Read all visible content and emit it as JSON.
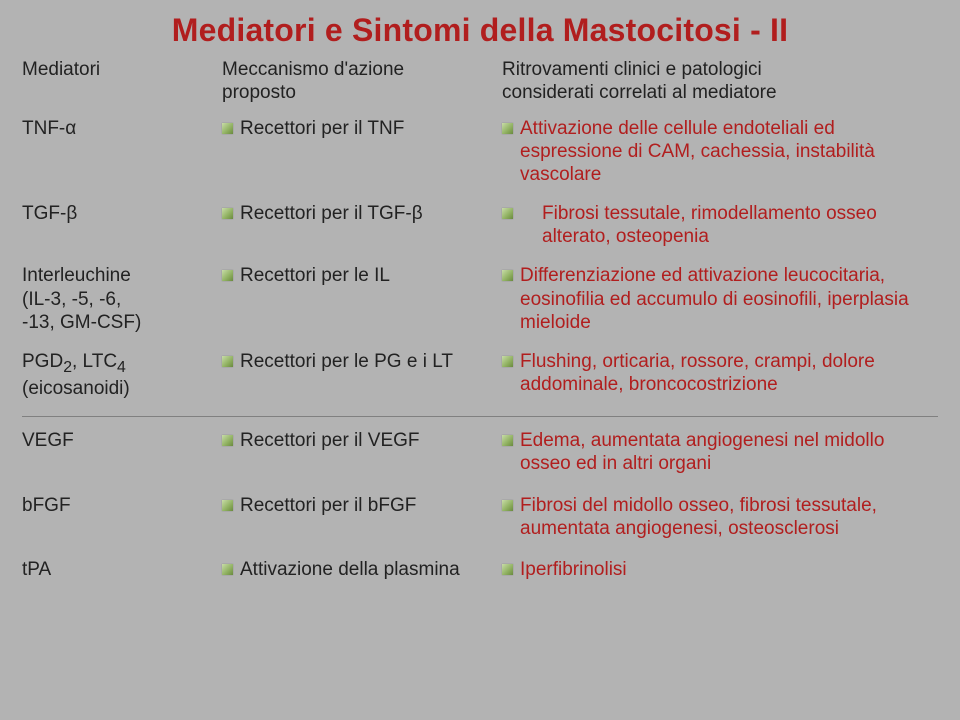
{
  "colors": {
    "title_color": "#b11e1e",
    "header_color": "#222222",
    "med_color": "#222222",
    "mech_color": "#222222",
    "eff_color": "#b11e1e",
    "background": "#b3b3b3",
    "bullet_fill": "#8fb060"
  },
  "title": "Mediatori e Sintomi della Mastocitosi - II",
  "headers": {
    "col1": "Mediatori",
    "col2_line1": "Meccanismo d'azione",
    "col2_line2": "proposto",
    "col3_line1": "Ritrovamenti clinici e patologici",
    "col3_line2": "considerati correlati al mediatore"
  },
  "rows_top": [
    {
      "med": "TNF-α",
      "mech": "Recettori per il TNF",
      "eff": "Attivazione delle cellule endoteliali ed espressione di CAM, cachessia, instabilità vascolare"
    },
    {
      "med": "TGF-β",
      "mech": "Recettori per il TGF-β",
      "eff": "Fibrosi tessutale, rimodellamento osseo alterato, osteopenia",
      "eff_indent": "22px"
    },
    {
      "med_line1": "Interleuchine",
      "med_line2": "(IL-3, -5, -6,",
      "med_line3": "-13, GM-CSF)",
      "mech": "Recettori per le IL",
      "eff": "Differenziazione ed attivazione leucocitaria, eosinofilia ed accumulo di eosinofili, iperplasia mieloide"
    },
    {
      "med_html": "PGD<sub>2</sub>, LTC<sub>4</sub>",
      "med_line2": "(eicosanoidi)",
      "mech": "Recettori per le PG e i LT",
      "eff": "Flushing, orticaria, rossore, crampi, dolore addominale, broncocostrizione"
    }
  ],
  "rows_bottom": [
    {
      "med": "VEGF",
      "mech": "Recettori per il VEGF",
      "eff": "Edema, aumentata angiogenesi nel midollo osseo ed in altri organi"
    },
    {
      "med": "bFGF",
      "mech": "Recettori per il bFGF",
      "eff": "Fibrosi del midollo osseo, fibrosi tessutale, aumentata angiogenesi, osteosclerosi"
    },
    {
      "med": "tPA",
      "mech": "Attivazione della plasmina",
      "eff": "Iperfibrinolisi"
    }
  ]
}
